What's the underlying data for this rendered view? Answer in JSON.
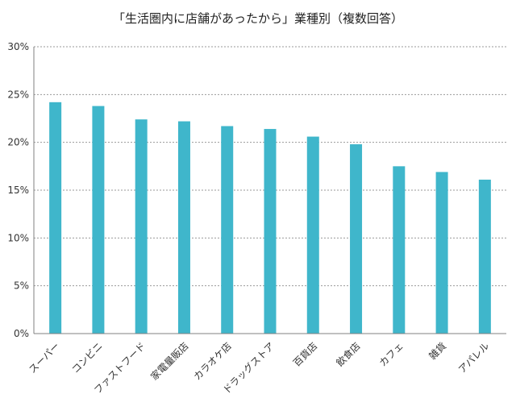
{
  "chart_data": {
    "type": "bar",
    "title": "「生活圏内に店舗があったから」業種別（複数回答）",
    "xlabel": "",
    "ylabel": "",
    "categories": [
      "スーパー",
      "コンビニ",
      "ファストフード",
      "家電量販店",
      "カラオケ店",
      "ドラッグストア",
      "百貨店",
      "飲食店",
      "カフェ",
      "雑貨",
      "アパレル"
    ],
    "values": [
      24.2,
      23.8,
      22.4,
      22.2,
      21.7,
      21.4,
      20.6,
      19.8,
      17.5,
      16.9,
      16.1
    ],
    "ylim": [
      0,
      30
    ],
    "yticks": [
      "0%",
      "5%",
      "10%",
      "15%",
      "20%",
      "25%",
      "30%"
    ],
    "grid": true,
    "legend": "none",
    "bar_color": "#3fb6cb"
  }
}
